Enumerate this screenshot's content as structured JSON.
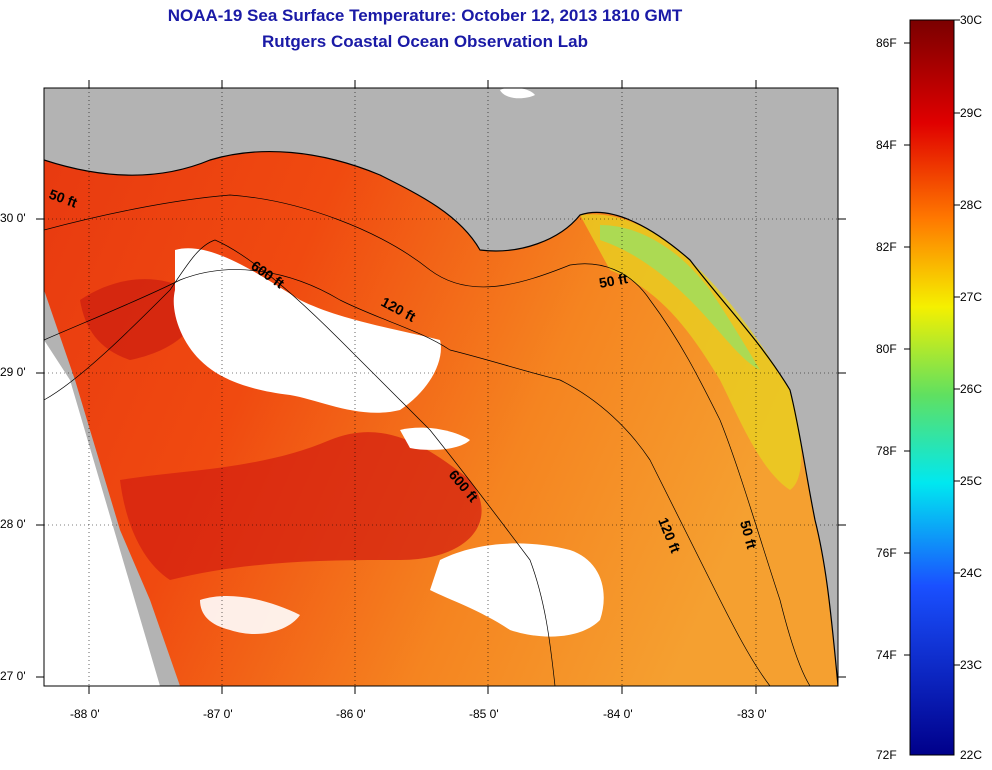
{
  "title": "NOAA-19 Sea Surface Temperature:  October 12, 2013 1810 GMT",
  "subtitle": "Rutgers Coastal Ocean Observation Lab",
  "map": {
    "lat_labels": [
      "30 0'",
      "29 0'",
      "28 0'",
      "27 0'"
    ],
    "lon_labels": [
      "-88 0'",
      "-87 0'",
      "-86 0'",
      "-85 0'",
      "-84 0'",
      "-83 0'"
    ],
    "contour_labels": [
      "50 ft",
      "600 ft",
      "120 ft",
      "50 ft",
      "600 ft",
      "120 ft",
      "50 ft"
    ]
  },
  "colorbar": {
    "fahrenheit": [
      "86F",
      "84F",
      "82F",
      "80F",
      "78F",
      "76F",
      "74F",
      "72F"
    ],
    "celsius": [
      "30C",
      "29C",
      "28C",
      "27C",
      "26C",
      "25C",
      "24C",
      "23C",
      "22C"
    ],
    "colors": {
      "top": "#7a0000",
      "red": "#e00000",
      "orange": "#ff7800",
      "yellow": "#f5f000",
      "green": "#60e060",
      "cyan": "#00e8f0",
      "blue": "#1a50ff",
      "bottom": "#00008a"
    }
  },
  "colors": {
    "land": "#b3b3b3",
    "title": "#1a1aa6",
    "cloud": "#ffffff"
  }
}
